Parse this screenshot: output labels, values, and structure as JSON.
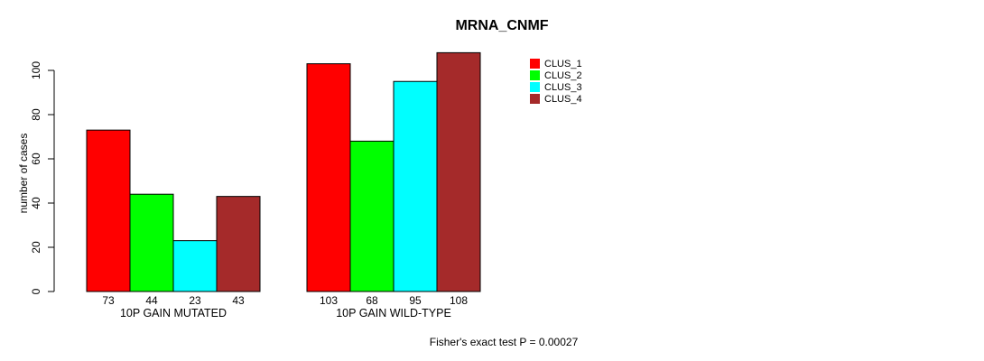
{
  "chart_data": {
    "type": "bar",
    "title": "MRNA_CNMF",
    "ylabel": "number of cases",
    "xlabel": "",
    "ylim": [
      0,
      100
    ],
    "yticks": [
      0,
      20,
      40,
      60,
      80,
      100
    ],
    "grid": false,
    "legend_position": "top-right",
    "bar_outline_color": "#000000",
    "categories": [
      "10P GAIN MUTATED",
      "10P GAIN WILD-TYPE"
    ],
    "series": [
      {
        "name": "CLUS_1",
        "color": "#FF0000",
        "values": [
          73,
          103
        ]
      },
      {
        "name": "CLUS_2",
        "color": "#00FF00",
        "values": [
          44,
          68
        ]
      },
      {
        "name": "CLUS_3",
        "color": "#00FFFF",
        "values": [
          23,
          95
        ]
      },
      {
        "name": "CLUS_4",
        "color": "#A52A2A",
        "values": [
          43,
          108
        ]
      }
    ],
    "bar_value_labels": [
      [
        73,
        44,
        23,
        43
      ],
      [
        103,
        68,
        95,
        108
      ]
    ],
    "caption": "Fisher's exact test P = 0.00027",
    "text_color": "#000000",
    "background_color": "#FFFFFF"
  }
}
